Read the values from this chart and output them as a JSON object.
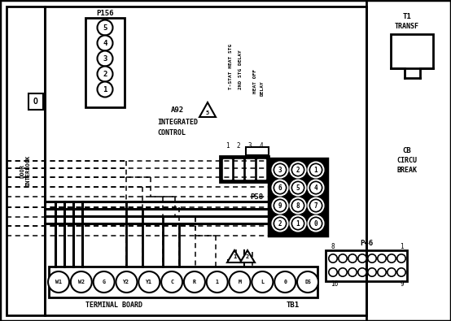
{
  "bg_color": "#ffffff",
  "fig_width": 5.54,
  "fig_height": 3.95,
  "p156_pins": [
    "5",
    "4",
    "3",
    "2",
    "1"
  ],
  "p58_pins": [
    [
      "3",
      "2",
      "1"
    ],
    [
      "6",
      "5",
      "4"
    ],
    [
      "9",
      "8",
      "7"
    ],
    [
      "2",
      "1",
      "0"
    ]
  ],
  "tb_pins": [
    "W1",
    "W2",
    "G",
    "Y2",
    "Y1",
    "C",
    "R",
    "1",
    "M",
    "L",
    "0",
    "DS"
  ],
  "relay_pin_nums": [
    "1",
    "2",
    "3",
    "4"
  ]
}
